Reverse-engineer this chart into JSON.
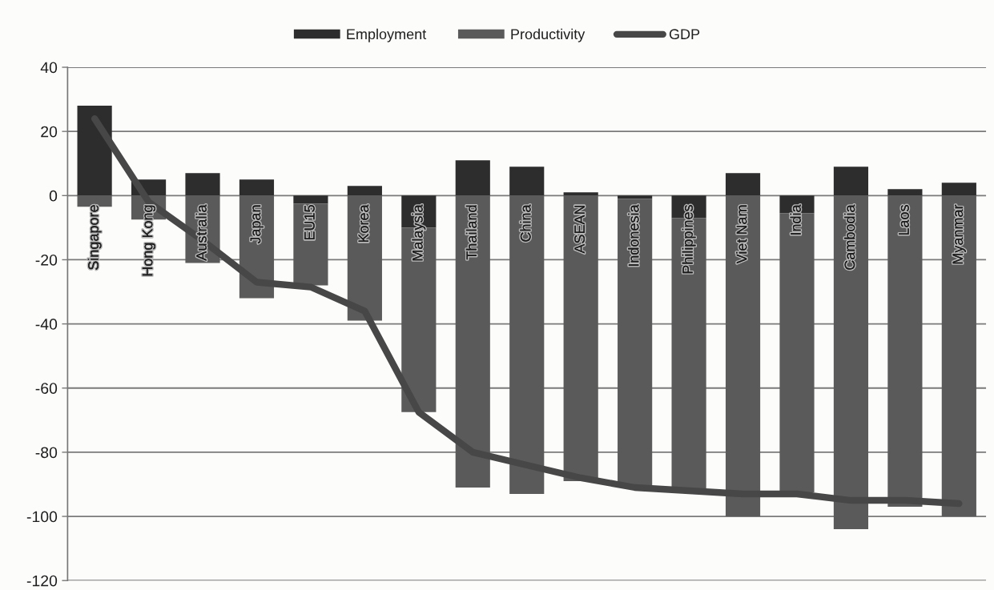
{
  "chart_data": {
    "type": "bar",
    "stacked": true,
    "categories": [
      "Singapore",
      "Hong Kong",
      "Australia",
      "Japan",
      "EU15",
      "Korea",
      "Malaysia",
      "Thailand",
      "China",
      "ASEAN",
      "Indonesia",
      "Philippines",
      "Viet Nam",
      "India",
      "Cambodia",
      "Laos",
      "Myanmar"
    ],
    "series": [
      {
        "name": "Employment",
        "color": "#2d2d2d",
        "values": [
          28,
          5,
          7,
          5,
          -2.5,
          3,
          -10,
          11,
          9,
          1,
          -1,
          -7,
          7,
          -5.5,
          9,
          2,
          4
        ]
      },
      {
        "name": "Productivity",
        "color": "#5a5a5a",
        "values": [
          -3.5,
          -7.5,
          -21,
          -32,
          -25.5,
          -39,
          -57.5,
          -91,
          -93,
          -89,
          -90,
          -85,
          -100,
          -87,
          -104,
          -97,
          -100
        ]
      },
      {
        "name": "GDP",
        "type": "line",
        "color": "#474747",
        "values": [
          24,
          -2,
          -14,
          -27,
          -28.5,
          -36,
          -67.5,
          -80,
          -84,
          -88,
          -91,
          -92,
          -93,
          -93,
          -95,
          -95,
          -96
        ]
      }
    ],
    "ylim": [
      -120,
      40
    ],
    "yticks": [
      -120,
      -100,
      -80,
      -60,
      -40,
      -20,
      0,
      20,
      40
    ],
    "grid": "y",
    "legend": "top"
  }
}
